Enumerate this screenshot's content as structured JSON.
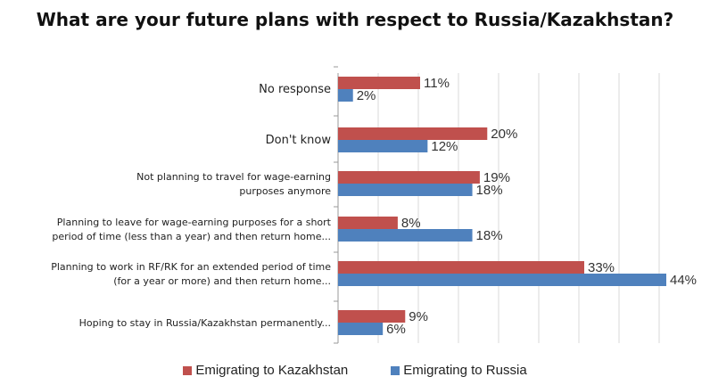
{
  "chart_data": {
    "type": "bar",
    "orientation": "horizontal",
    "title": "What are your future plans with respect to Russia/Kazakhstan?",
    "categories": [
      [
        "No response"
      ],
      [
        "Don't know"
      ],
      [
        "Not planning to travel for wage-earning",
        "purposes anymore"
      ],
      [
        "Planning to leave for wage-earning purposes for a short",
        "period of time (less than a year) and then return home..."
      ],
      [
        "Planning to work in RF/RK for an extended period of time",
        "(for a year or more) and then return home..."
      ],
      [
        "Hoping to stay in Russia/Kazakhstan permanently..."
      ]
    ],
    "series": [
      {
        "name": "Emigrating to Kazakhstan",
        "color": "#c0504d",
        "values": [
          11,
          20,
          19,
          8,
          33,
          9
        ],
        "labels": [
          "11%",
          "20%",
          "19%",
          "8%",
          "33%",
          "9%"
        ]
      },
      {
        "name": "Emigrating to Russia",
        "color": "#4f81bd",
        "values": [
          2,
          12,
          18,
          18,
          44,
          6
        ],
        "labels": [
          "2%",
          "12%",
          "18%",
          "18%",
          "44%",
          "6%"
        ]
      }
    ],
    "xlim": [
      0,
      44
    ],
    "grid": true,
    "legend_position": "bottom",
    "value_label_unit": "%"
  }
}
